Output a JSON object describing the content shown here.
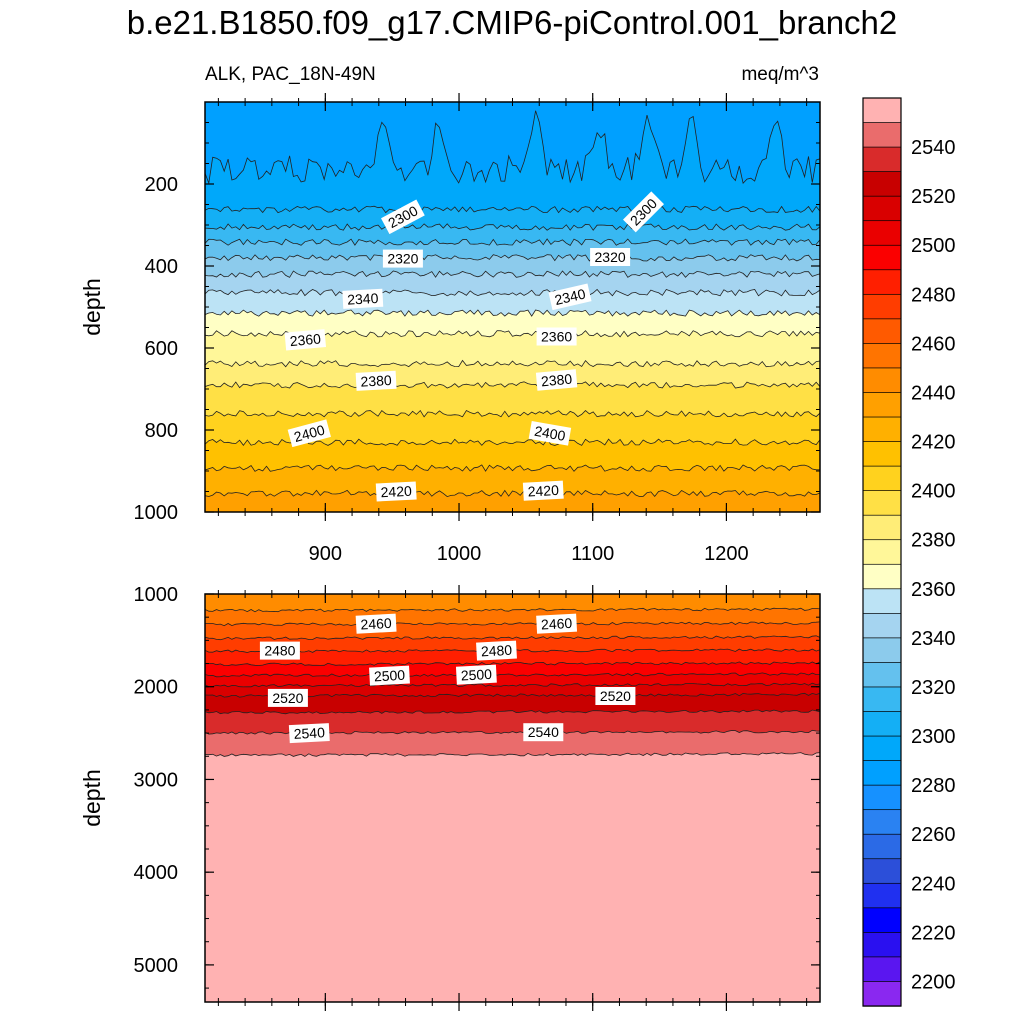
{
  "title": "b.e21.B1850.f09_g17.CMIP6-piControl.001_branch2",
  "chart_data": {
    "type": "contour",
    "left_subtitle": "ALK, PAC_18N-49N",
    "right_subtitle": "meq/m^3",
    "x_axis": {
      "range": [
        810,
        1270
      ],
      "ticks": [
        900,
        1000,
        1100,
        1200
      ]
    },
    "panels": [
      {
        "name": "upper-ocean",
        "ylabel": "depth",
        "y_range": [
          0,
          1000
        ],
        "y_ticks": [
          200,
          400,
          600,
          800,
          1000
        ],
        "x_ticks_shown": true,
        "contours": [
          {
            "level": 2290,
            "depth": 165
          },
          {
            "level": 2300,
            "depth": 262
          },
          {
            "level": 2310,
            "depth": 305
          },
          {
            "level": 2320,
            "depth": 342
          },
          {
            "level": 2330,
            "depth": 380
          },
          {
            "level": 2340,
            "depth": 420
          },
          {
            "level": 2350,
            "depth": 465
          },
          {
            "level": 2360,
            "depth": 515
          },
          {
            "level": 2370,
            "depth": 565
          },
          {
            "level": 2380,
            "depth": 638
          },
          {
            "level": 2390,
            "depth": 690
          },
          {
            "level": 2400,
            "depth": 760
          },
          {
            "level": 2410,
            "depth": 830
          },
          {
            "level": 2420,
            "depth": 893
          },
          {
            "level": 2430,
            "depth": 955
          }
        ],
        "contour_labels": [
          {
            "text": "2300",
            "x": 958,
            "depth": 280,
            "angle": -28
          },
          {
            "text": "2300",
            "x": 1138,
            "depth": 268,
            "angle": -45
          },
          {
            "text": "2320",
            "x": 958,
            "depth": 382,
            "angle": 0
          },
          {
            "text": "2320",
            "x": 1113,
            "depth": 378,
            "angle": 0
          },
          {
            "text": "2340",
            "x": 928,
            "depth": 480,
            "angle": -3
          },
          {
            "text": "2340",
            "x": 1083,
            "depth": 475,
            "angle": -13
          },
          {
            "text": "2360",
            "x": 885,
            "depth": 580,
            "angle": -5
          },
          {
            "text": "2360",
            "x": 1073,
            "depth": 572,
            "angle": 0
          },
          {
            "text": "2380",
            "x": 938,
            "depth": 680,
            "angle": -3
          },
          {
            "text": "2380",
            "x": 1073,
            "depth": 678,
            "angle": -5
          },
          {
            "text": "2400",
            "x": 888,
            "depth": 808,
            "angle": -15
          },
          {
            "text": "2400",
            "x": 1068,
            "depth": 808,
            "angle": 10
          },
          {
            "text": "2420",
            "x": 953,
            "depth": 950,
            "angle": -3
          },
          {
            "text": "2420",
            "x": 1063,
            "depth": 948,
            "angle": -3
          }
        ]
      },
      {
        "name": "deep-ocean",
        "ylabel": "depth",
        "y_range": [
          1000,
          5400
        ],
        "y_ticks": [
          1000,
          2000,
          3000,
          4000,
          5000
        ],
        "x_ticks_shown": false,
        "contours": [
          {
            "level": 2450,
            "depth": 1180
          },
          {
            "level": 2460,
            "depth": 1330
          },
          {
            "level": 2470,
            "depth": 1480
          },
          {
            "level": 2480,
            "depth": 1620
          },
          {
            "level": 2490,
            "depth": 1760
          },
          {
            "level": 2500,
            "depth": 1880
          },
          {
            "level": 2510,
            "depth": 1990
          },
          {
            "level": 2520,
            "depth": 2100
          },
          {
            "level": 2530,
            "depth": 2280
          },
          {
            "level": 2540,
            "depth": 2500
          },
          {
            "level": 2550,
            "depth": 2740
          }
        ],
        "contour_labels": [
          {
            "text": "2460",
            "x": 938,
            "depth": 1320,
            "angle": -3
          },
          {
            "text": "2460",
            "x": 1073,
            "depth": 1320,
            "angle": -3
          },
          {
            "text": "2480",
            "x": 866,
            "depth": 1610,
            "angle": 0
          },
          {
            "text": "2480",
            "x": 1028,
            "depth": 1610,
            "angle": -3
          },
          {
            "text": "2500",
            "x": 948,
            "depth": 1880,
            "angle": -3
          },
          {
            "text": "2500",
            "x": 1013,
            "depth": 1870,
            "angle": -3
          },
          {
            "text": "2520",
            "x": 872,
            "depth": 2120,
            "angle": 0
          },
          {
            "text": "2520",
            "x": 1117,
            "depth": 2100,
            "angle": 0
          },
          {
            "text": "2540",
            "x": 888,
            "depth": 2500,
            "angle": -3
          },
          {
            "text": "2540",
            "x": 1063,
            "depth": 2490,
            "angle": 0
          }
        ]
      }
    ],
    "colorbar": {
      "levels_top_to_bottom": [
        2550,
        2540,
        2530,
        2520,
        2510,
        2500,
        2490,
        2480,
        2470,
        2460,
        2450,
        2440,
        2430,
        2420,
        2410,
        2400,
        2390,
        2380,
        2370,
        2360,
        2350,
        2340,
        2330,
        2320,
        2310,
        2300,
        2290,
        2280,
        2270,
        2260,
        2250,
        2240,
        2230,
        2220,
        2210,
        2200
      ],
      "labels": [
        "2540",
        "2520",
        "2500",
        "2480",
        "2460",
        "2440",
        "2420",
        "2400",
        "2380",
        "2360",
        "2340",
        "2320",
        "2300",
        "2280",
        "2260",
        "2240",
        "2220",
        "2200"
      ],
      "colors_top_to_bottom": [
        "#FFB2B2",
        "#EA6C6C",
        "#D92B2B",
        "#C80000",
        "#D90000",
        "#EA0000",
        "#FB0000",
        "#FF1F00",
        "#FF3D00",
        "#FF5A00",
        "#FF7400",
        "#FF8C00",
        "#FFA000",
        "#FFB000",
        "#FFC100",
        "#FFD21E",
        "#FFE045",
        "#FFED77",
        "#FFF799",
        "#FFFFC5",
        "#BCE3F5",
        "#A5D4F0",
        "#8CCBEC",
        "#64C1EE",
        "#38B8F2",
        "#14AFF5",
        "#00A8FA",
        "#00A0FF",
        "#1691FF",
        "#2A82F2",
        "#2B6AE6",
        "#2C4FD9",
        "#2030F0",
        "#0000FF",
        "#2A10F0",
        "#5A16F0",
        "#8A28F0"
      ]
    }
  }
}
